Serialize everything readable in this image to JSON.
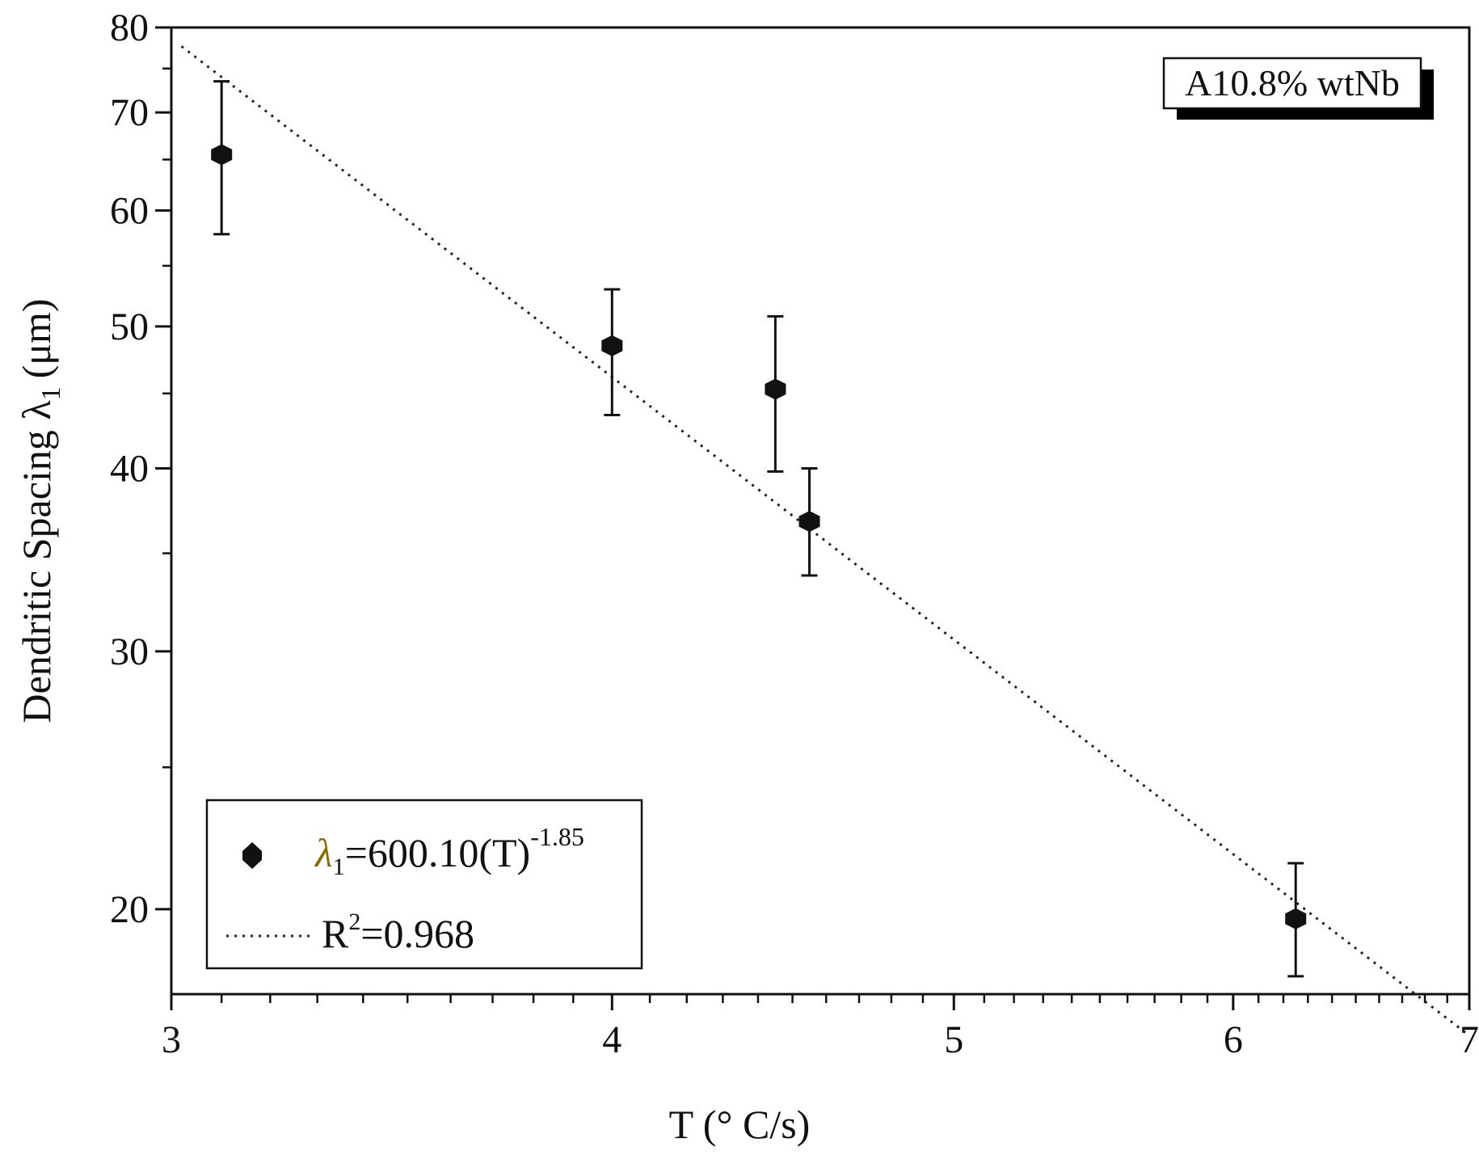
{
  "chart_data": {
    "type": "scatter",
    "xscale": "log",
    "yscale": "log",
    "xlabel": "T (° C/s)",
    "ylabel": "Dendritic Spacing λ",
    "ylabel_sub": "1",
    "ylabel_unit": "(μm)",
    "xlim": [
      3,
      7
    ],
    "ylim": [
      17.5,
      80
    ],
    "xticks": [
      3,
      4,
      5,
      6,
      7
    ],
    "yticks": [
      20,
      30,
      40,
      50,
      60,
      70,
      80
    ],
    "grid": false,
    "points": [
      {
        "x": 3.1,
        "y": 65.5,
        "yerr_low": 57.8,
        "yerr_high": 73.5
      },
      {
        "x": 4.0,
        "y": 48.5,
        "yerr_low": 43.5,
        "yerr_high": 53.0
      },
      {
        "x": 4.45,
        "y": 45.3,
        "yerr_low": 39.8,
        "yerr_high": 50.8
      },
      {
        "x": 4.55,
        "y": 36.8,
        "yerr_low": 33.8,
        "yerr_high": 40.0
      },
      {
        "x": 6.25,
        "y": 19.7,
        "yerr_low": 18.0,
        "yerr_high": 21.5
      }
    ],
    "fit": {
      "a": 600.1,
      "b": -1.85,
      "x_from": 3.02,
      "x_to": 7.0
    },
    "legend": {
      "position": "bottom-left",
      "marker_entry": {
        "symbol": "λ",
        "sub": "1",
        "text": "=600.10(T)",
        "sup": "-1.85"
      },
      "line_entry": {
        "text_prefix": "R",
        "sup": "2",
        "text": "=0.968"
      }
    },
    "annotation": "A10.8% wtNb"
  }
}
